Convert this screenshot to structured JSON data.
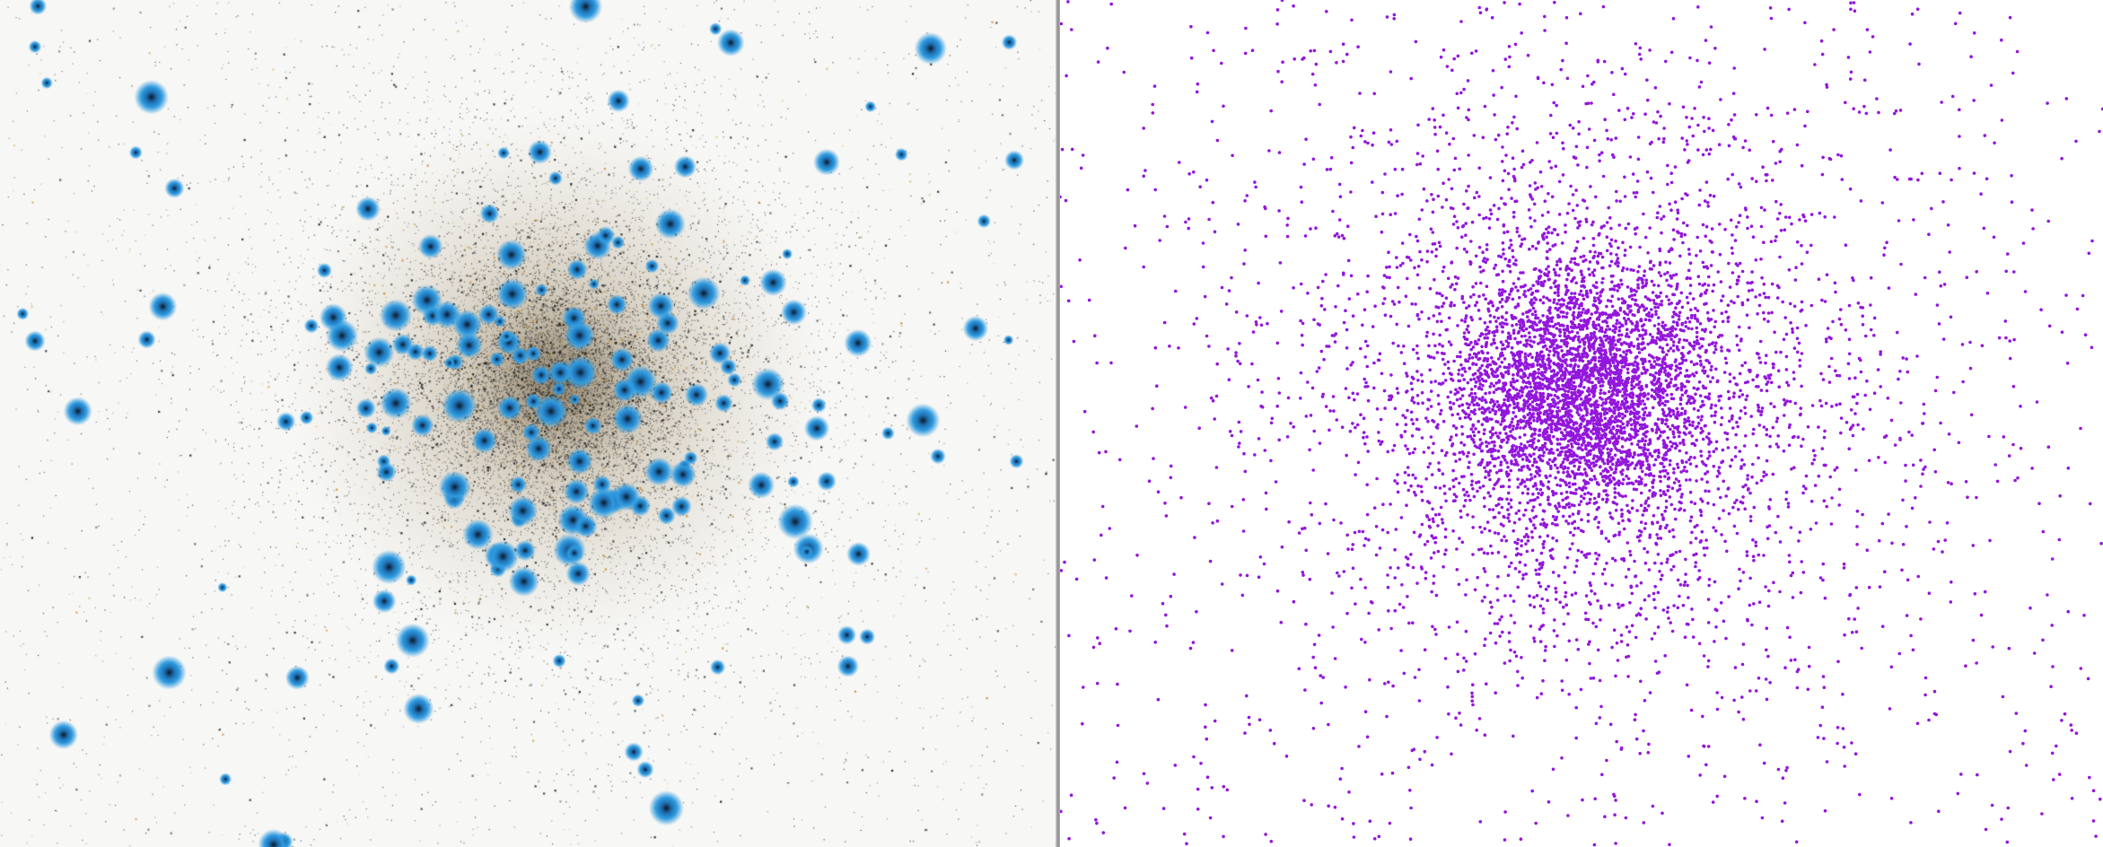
{
  "left_panel": {
    "kind": "inverted-color star cluster photograph",
    "background_color": "#f7f7f5",
    "colors": {
      "faint_star": "#1a1a1a",
      "red_giant": "#c8902a",
      "bright_star_halo": "#2f9be0",
      "core_haze": "#8a7a60"
    }
  },
  "right_panel": {
    "kind": "scatter of star positions",
    "background_color": "#ffffff",
    "point_color": "#9317dc"
  }
}
